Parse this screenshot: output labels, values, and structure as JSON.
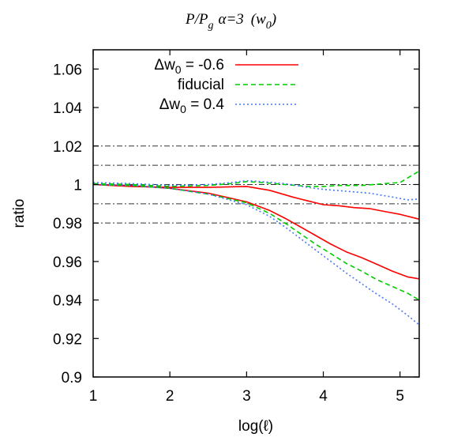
{
  "chart_data": {
    "type": "line",
    "title": {
      "p1": "P/P",
      "p1_sub": "g",
      "alpha": "α=3",
      "paren_open": "(w",
      "paren_sub": "0",
      "paren_close": ")"
    },
    "xlabel": "log(ℓ)",
    "ylabel": "ratio",
    "xlim": [
      1,
      5.25
    ],
    "ylim": [
      0.9,
      1.07
    ],
    "xticks": [
      1,
      2,
      3,
      4,
      5
    ],
    "xtick_labels": [
      "1",
      "2",
      "3",
      "4",
      "5"
    ],
    "yticks": [
      0.9,
      0.92,
      0.94,
      0.96,
      0.98,
      1.0,
      1.02,
      1.04,
      1.06
    ],
    "ytick_labels": [
      "0.9",
      "0.92",
      "0.94",
      "0.96",
      "0.98",
      "1",
      "1.02",
      "1.04",
      "1.06"
    ],
    "reference_lines": [
      0.98,
      0.99,
      1.0,
      1.01,
      1.02
    ],
    "legend_position": "top-left",
    "legend": {
      "s1_pre": "Δw",
      "s1_sub": "0",
      "s1_post": " = -0.6",
      "s2": "fiducial",
      "s3_pre": "Δw",
      "s3_sub": "0",
      "s3_post": " = 0.4"
    },
    "series": [
      {
        "key": "minus",
        "color": "#ff0000",
        "dash": "",
        "x": [
          1.0,
          1.5,
          2.0,
          2.5,
          3.0,
          3.3,
          3.6,
          3.8,
          4.0,
          4.2,
          4.4,
          4.6,
          4.8,
          5.0,
          5.25
        ],
        "y": [
          1.0,
          0.999,
          0.9985,
          0.9985,
          0.999,
          0.997,
          0.9935,
          0.9915,
          0.9895,
          0.989,
          0.988,
          0.9875,
          0.986,
          0.9845,
          0.982
        ]
      },
      {
        "key": "minus",
        "color": "#ff0000",
        "dash": "",
        "x": [
          1.0,
          1.5,
          2.0,
          2.5,
          3.0,
          3.3,
          3.5,
          3.7,
          3.9,
          4.1,
          4.3,
          4.5,
          4.7,
          4.9,
          5.1,
          5.25
        ],
        "y": [
          1.0,
          0.9995,
          0.998,
          0.9955,
          0.991,
          0.9865,
          0.9825,
          0.978,
          0.9735,
          0.969,
          0.965,
          0.962,
          0.9585,
          0.955,
          0.952,
          0.951
        ]
      },
      {
        "key": "fid",
        "color": "#00cc00",
        "dash": "6,4",
        "x": [
          1.0,
          1.5,
          2.0,
          2.5,
          2.8,
          3.0,
          3.2,
          3.5,
          3.8,
          4.0,
          4.2,
          4.5,
          4.8,
          5.0,
          5.25
        ],
        "y": [
          1.0005,
          1.0,
          0.999,
          0.9995,
          1.0005,
          1.0015,
          1.001,
          1.0,
          0.999,
          0.999,
          0.9995,
          0.9995,
          1.0005,
          1.001,
          1.007
        ]
      },
      {
        "key": "fid",
        "color": "#00cc00",
        "dash": "6,4",
        "x": [
          1.0,
          1.5,
          2.0,
          2.5,
          3.0,
          3.3,
          3.5,
          3.7,
          3.9,
          4.1,
          4.3,
          4.5,
          4.7,
          4.9,
          5.1,
          5.25
        ],
        "y": [
          1.0,
          0.9995,
          0.998,
          0.995,
          0.9905,
          0.985,
          0.98,
          0.9745,
          0.969,
          0.964,
          0.959,
          0.955,
          0.9505,
          0.947,
          0.9435,
          0.94
        ]
      },
      {
        "key": "plus",
        "color": "#4477ff",
        "dash": "2,3",
        "x": [
          1.0,
          1.5,
          2.0,
          2.5,
          2.8,
          3.0,
          3.2,
          3.5,
          3.8,
          4.0,
          4.3,
          4.6,
          4.9,
          5.1,
          5.25
        ],
        "y": [
          1.001,
          1.0005,
          0.9995,
          1.0,
          1.001,
          1.002,
          1.0015,
          1.0005,
          0.9985,
          0.9975,
          0.9965,
          0.9955,
          0.9935,
          0.992,
          0.9925
        ]
      },
      {
        "key": "plus",
        "color": "#4477ff",
        "dash": "2,3",
        "x": [
          1.0,
          1.5,
          2.0,
          2.5,
          3.0,
          3.3,
          3.5,
          3.7,
          3.9,
          4.1,
          4.3,
          4.5,
          4.7,
          4.9,
          5.1,
          5.25
        ],
        "y": [
          1.0,
          0.9995,
          0.998,
          0.995,
          0.9895,
          0.9835,
          0.978,
          0.972,
          0.966,
          0.96,
          0.954,
          0.9485,
          0.943,
          0.938,
          0.932,
          0.927
        ]
      }
    ]
  }
}
